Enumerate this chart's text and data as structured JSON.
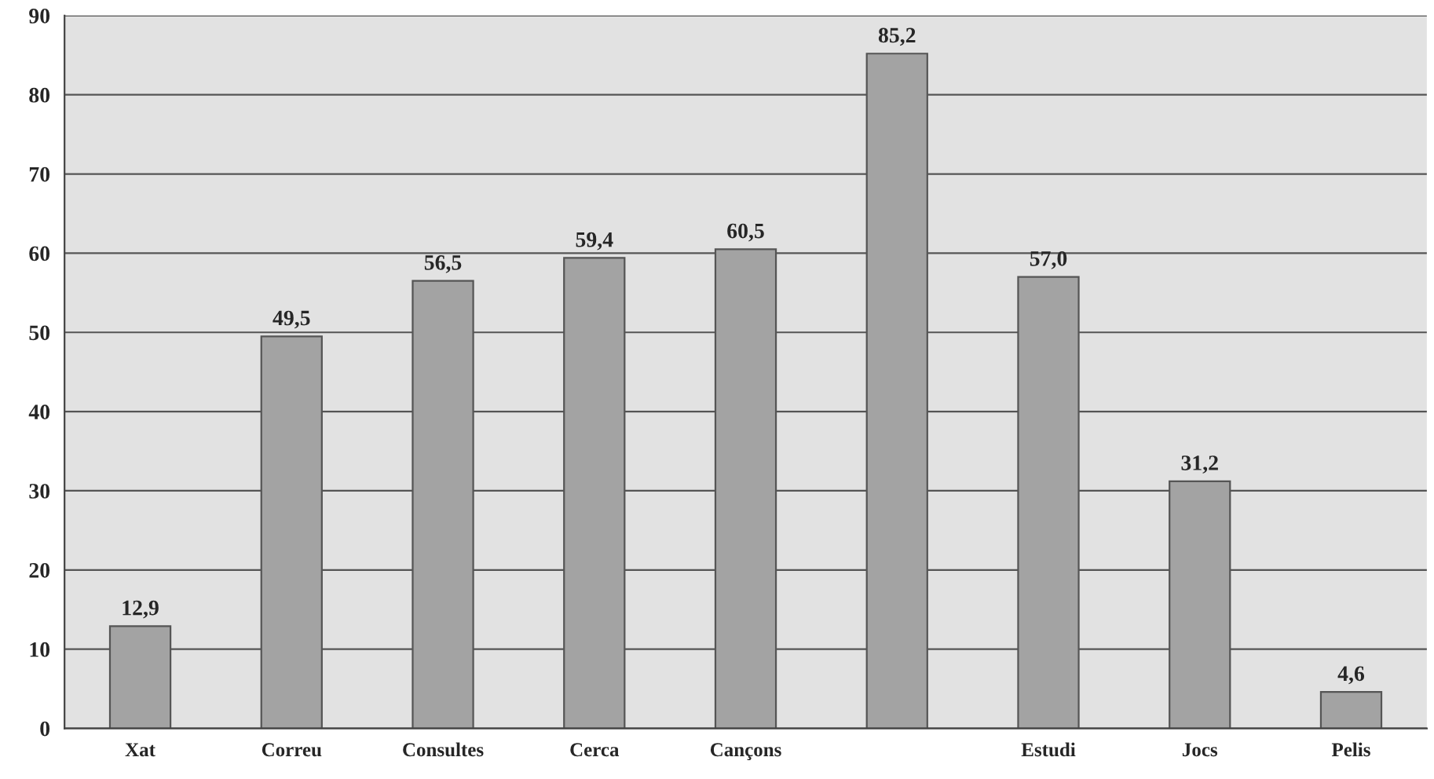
{
  "chart_data": {
    "type": "bar",
    "categories": [
      "Xat",
      "Correu",
      "Consultes",
      "Cerca",
      "Cançons",
      null,
      "Estudi",
      "Jocs",
      "Pelis"
    ],
    "values": [
      12.9,
      49.5,
      56.5,
      59.4,
      60.5,
      85.2,
      57.0,
      31.2,
      4.6
    ],
    "value_labels": [
      "12,9",
      "49,5",
      "56,5",
      "59,4",
      "60,5",
      "85,2",
      "57,0",
      "31,2",
      "4,6"
    ],
    "color": "#a3a3a3",
    "ylim": [
      0,
      90
    ],
    "yticks": [
      0,
      10,
      20,
      30,
      40,
      50,
      60,
      70,
      80,
      90
    ],
    "grid": "y",
    "legend": false
  }
}
